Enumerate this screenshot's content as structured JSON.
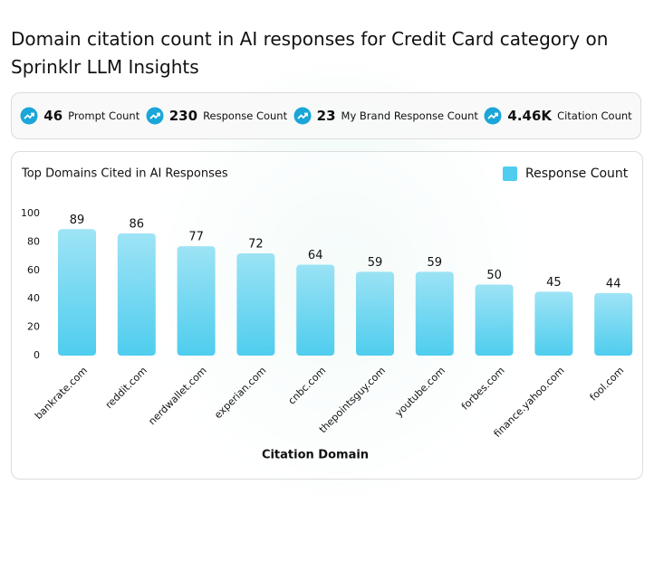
{
  "header": {
    "title": "Domain citation count in AI responses for Credit Card category on Sprinklr LLM Insights"
  },
  "stats": [
    {
      "value": "46",
      "label": "Prompt Count"
    },
    {
      "value": "230",
      "label": "Response Count"
    },
    {
      "value": "23",
      "label": "My Brand Response Count"
    },
    {
      "value": "4.46K",
      "label": "Citation Count"
    }
  ],
  "chart_data": {
    "type": "bar",
    "title": "Top Domains Cited in AI Responses",
    "x_label": "Citation Domain",
    "categories": [
      "bankrate.com",
      "reddit.com",
      "nerdwallet.com",
      "experian.com",
      "cnbc.com",
      "thepointsguy.com",
      "youtube.com",
      "forbes.com",
      "finance.yahoo.com",
      "fool.com"
    ],
    "series": [
      {
        "name": "Response Count",
        "color": "#4fcdee",
        "values": [
          89,
          86,
          77,
          72,
          64,
          59,
          59,
          50,
          45,
          44
        ]
      }
    ],
    "ylim": [
      0,
      100
    ],
    "yticks": [
      0,
      20,
      40,
      60,
      80,
      100
    ],
    "grid": false,
    "legend": "top-right"
  }
}
